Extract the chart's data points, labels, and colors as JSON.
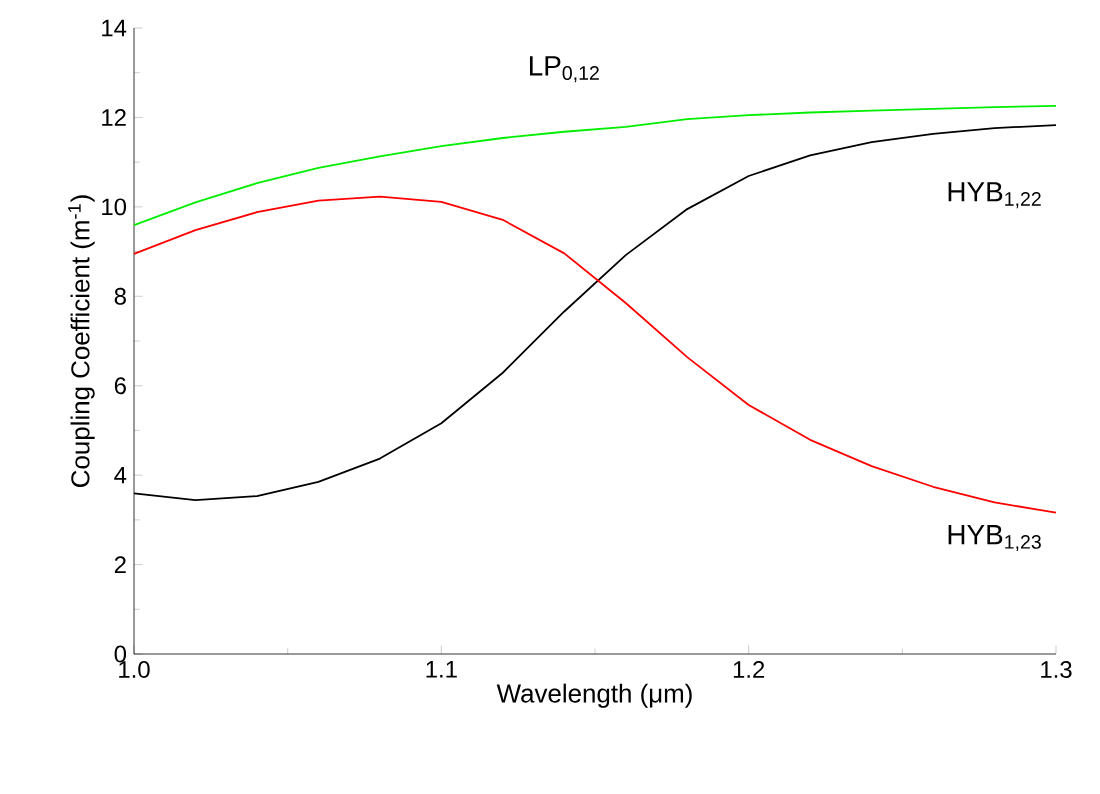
{
  "chart_data": {
    "type": "line",
    "xlabel": "Wavelength (μm)",
    "ylabel": "Coupling Coefficient (m$^{-1}$)",
    "x": [
      1.0,
      1.02,
      1.04,
      1.06,
      1.08,
      1.1,
      1.12,
      1.14,
      1.16,
      1.18,
      1.2,
      1.22,
      1.24,
      1.26,
      1.28,
      1.3
    ],
    "series": [
      {
        "name": "LP$_{0,12}$",
        "color": "#00ee00",
        "values": [
          9.59,
          10.1,
          10.53,
          10.87,
          11.13,
          11.36,
          11.54,
          11.68,
          11.79,
          11.96,
          12.05,
          12.11,
          12.15,
          12.19,
          12.23,
          12.26
        ]
      },
      {
        "name": "HYB$_{1,22}$",
        "color": "#000000",
        "values": [
          3.59,
          3.44,
          3.53,
          3.85,
          4.37,
          5.16,
          6.29,
          7.66,
          8.92,
          9.95,
          10.69,
          11.15,
          11.45,
          11.63,
          11.76,
          11.83
        ]
      },
      {
        "name": "HYB$_{1,23}$",
        "color": "#ff0000",
        "values": [
          8.95,
          9.48,
          9.88,
          10.14,
          10.23,
          10.11,
          9.71,
          8.96,
          7.85,
          6.64,
          5.57,
          4.79,
          4.2,
          3.74,
          3.39,
          3.16
        ]
      }
    ],
    "xlim": [
      1.0,
      1.3
    ],
    "ylim": [
      0,
      14
    ],
    "xticks": [
      {
        "value": 1.0,
        "label": "1.0"
      },
      {
        "value": 1.1,
        "label": "1.1"
      },
      {
        "value": 1.2,
        "label": "1.2"
      },
      {
        "value": 1.3,
        "label": "1.3"
      }
    ],
    "yticks": [
      0,
      2,
      4,
      6,
      8,
      10,
      12,
      14
    ],
    "grid": false,
    "legend": false,
    "marker": "none",
    "line_style": "solid"
  }
}
